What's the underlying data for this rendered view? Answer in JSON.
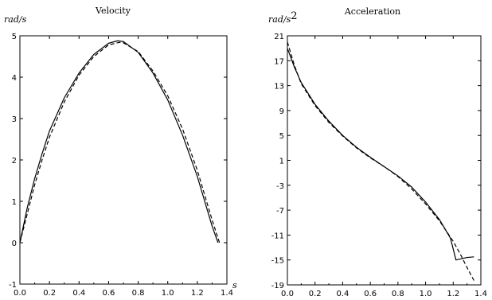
{
  "chart_data": [
    {
      "type": "line",
      "title": "Velocity",
      "ylabel_unit": "rad/s",
      "xlabel_unit": "s",
      "xlim": [
        0,
        1.4
      ],
      "ylim": [
        -1,
        5
      ],
      "xticks": [
        "0.0",
        "0.2",
        "0.4",
        "0.6",
        "0.8",
        "1.0",
        "1.2",
        "1.4"
      ],
      "yticks": [
        "-1",
        "0",
        "1",
        "2",
        "3",
        "4",
        "5"
      ],
      "series": [
        {
          "style": "solid",
          "color": "#000000",
          "x": [
            0.0,
            0.05,
            0.1,
            0.15,
            0.2,
            0.3,
            0.4,
            0.5,
            0.6,
            0.66,
            0.7,
            0.8,
            0.9,
            1.0,
            1.1,
            1.2,
            1.25,
            1.3,
            1.34
          ],
          "y": [
            0.0,
            0.85,
            1.55,
            2.15,
            2.7,
            3.5,
            4.1,
            4.55,
            4.82,
            4.88,
            4.86,
            4.6,
            4.1,
            3.45,
            2.6,
            1.6,
            1.0,
            0.4,
            0.0
          ]
        },
        {
          "style": "dashed",
          "color": "#000000",
          "x": [
            0.0,
            0.05,
            0.1,
            0.15,
            0.2,
            0.3,
            0.4,
            0.5,
            0.6,
            0.67,
            0.7,
            0.8,
            0.9,
            1.0,
            1.1,
            1.2,
            1.25,
            1.3,
            1.35
          ],
          "y": [
            0.0,
            0.7,
            1.4,
            2.0,
            2.55,
            3.4,
            4.05,
            4.5,
            4.78,
            4.84,
            4.83,
            4.62,
            4.15,
            3.55,
            2.75,
            1.75,
            1.15,
            0.55,
            0.0
          ]
        }
      ]
    },
    {
      "type": "line",
      "title": "Acceleration",
      "ylabel_unit": "rad/s",
      "ylabel_exponent": "2",
      "xlim": [
        0,
        1.4
      ],
      "ylim": [
        -19,
        21
      ],
      "xticks": [
        "0.0",
        "0.2",
        "0.4",
        "0.6",
        "0.8",
        "1.0",
        "1.2",
        "1.4"
      ],
      "yticks": [
        "-19",
        "-15",
        "-11",
        "-7",
        "-3",
        "1",
        "5",
        "9",
        "13",
        "17",
        "21"
      ],
      "series": [
        {
          "style": "solid",
          "color": "#000000",
          "x": [
            0.0,
            0.05,
            0.1,
            0.2,
            0.3,
            0.4,
            0.5,
            0.6,
            0.7,
            0.8,
            0.9,
            1.0,
            1.1,
            1.18,
            1.22,
            1.3,
            1.35
          ],
          "y": [
            19.0,
            16.0,
            13.5,
            10.0,
            7.3,
            5.0,
            3.1,
            1.5,
            0.0,
            -1.5,
            -3.3,
            -5.7,
            -8.5,
            -11.5,
            -15.0,
            -14.6,
            -14.5
          ]
        },
        {
          "style": "dashed",
          "color": "#000000",
          "x": [
            0.0,
            0.05,
            0.1,
            0.2,
            0.3,
            0.4,
            0.5,
            0.6,
            0.7,
            0.8,
            0.9,
            1.0,
            1.1,
            1.2,
            1.25,
            1.3,
            1.35
          ],
          "y": [
            20.0,
            16.3,
            13.3,
            9.8,
            7.1,
            4.9,
            3.0,
            1.4,
            0.0,
            -1.6,
            -3.6,
            -6.0,
            -8.7,
            -12.0,
            -14.0,
            -16.2,
            -18.3
          ]
        }
      ]
    }
  ]
}
